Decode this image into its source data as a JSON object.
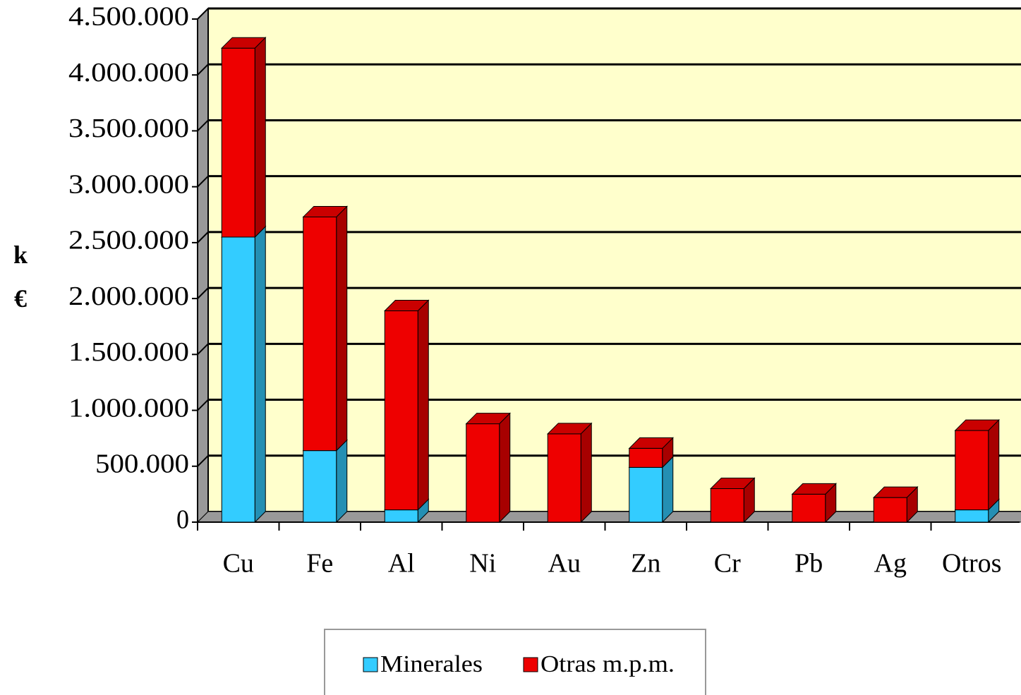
{
  "chart_data": {
    "type": "bar",
    "stacked": true,
    "y_label": "k €",
    "categories": [
      "Cu",
      "Fe",
      "Al",
      "Ni",
      "Au",
      "Zn",
      "Cr",
      "Pb",
      "Ag",
      "Otros"
    ],
    "series": [
      {
        "name": "Minerales",
        "color": "#33ccff",
        "values": [
          2550000,
          640000,
          110000,
          0,
          0,
          490000,
          0,
          0,
          0,
          110000
        ]
      },
      {
        "name": "Otras m.p.m.",
        "color": "#ee0000",
        "values": [
          1690000,
          2090000,
          1780000,
          880000,
          790000,
          170000,
          300000,
          250000,
          220000,
          710000
        ]
      }
    ],
    "ylim": [
      0,
      4500000
    ],
    "yticks": [
      0,
      {
        "value": 500000,
        "label": "500.000"
      },
      {
        "value": 1000000,
        "label": "1.000.000"
      },
      {
        "value": 1500000,
        "label": "1.500.000"
      },
      {
        "value": 2000000,
        "label": "2.000.000"
      },
      {
        "value": 2500000,
        "label": "2.500.000"
      },
      {
        "value": 3000000,
        "label": "3.000.000"
      },
      {
        "value": 3500000,
        "label": "3.500.000"
      },
      {
        "value": 4000000,
        "label": "4.000.000"
      },
      {
        "value": 4500000,
        "label": "4.500.000"
      }
    ],
    "grid": true,
    "legend": "bottom"
  }
}
